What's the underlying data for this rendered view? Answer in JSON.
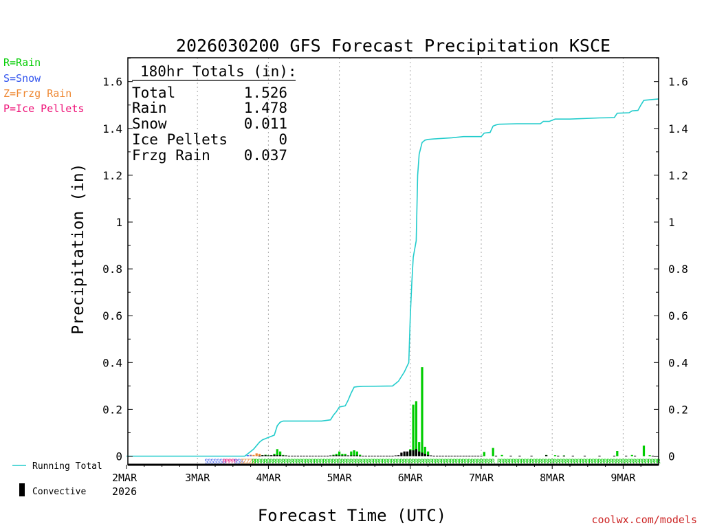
{
  "colors": {
    "rain": "#00cc00",
    "snow": "#3355ee",
    "frzg": "#ee8833",
    "ice": "#ee1177",
    "total_line": "#22cccc",
    "convective": "#000000",
    "grid": "#aaaaaa",
    "credit": "#cc2222"
  },
  "legend": {
    "rain": "R=Rain",
    "snow": "S=Snow",
    "frzg": "Z=Frzg Rain",
    "ice": "P=Ice Pellets",
    "running_total": "Running Total",
    "convective": "Convective"
  },
  "totals_box": {
    "header": "180hr Totals (in):",
    "rows": [
      {
        "label": "Total",
        "value": "1.526"
      },
      {
        "label": "Rain",
        "value": "1.478"
      },
      {
        "label": "Snow",
        "value": "0.011"
      },
      {
        "label": "Ice Pellets",
        "value": "0"
      },
      {
        "label": "Frzg Rain",
        "value": "0.037"
      }
    ]
  },
  "credit": "coolwx.com/models",
  "chart_data": {
    "type": "bar",
    "title": "2026030200 GFS Forecast Precipitation KSCE",
    "xlabel": "Forecast Time (UTC)",
    "ylabel": "Precipitation (in)",
    "ylim": [
      0,
      1.68
    ],
    "xlim_hours": [
      0,
      180
    ],
    "yticks": [
      0,
      0.2,
      0.4,
      0.6,
      0.8,
      1,
      1.2,
      1.4,
      1.6
    ],
    "ytick_labels": [
      "0",
      "0.2",
      "0.4",
      "0.6",
      "0.8",
      "1",
      "1.2",
      "1.4",
      "1.6"
    ],
    "xticks": [
      {
        "hour": 0,
        "label": "2MAR"
      },
      {
        "hour": 24,
        "label": "3MAR"
      },
      {
        "hour": 48,
        "label": "4MAR"
      },
      {
        "hour": 72,
        "label": "5MAR"
      },
      {
        "hour": 96,
        "label": "6MAR"
      },
      {
        "hour": 120,
        "label": "7MAR"
      },
      {
        "hour": 144,
        "label": "8MAR"
      },
      {
        "hour": 168,
        "label": "9MAR"
      }
    ],
    "year_label": "2026",
    "running_total": [
      [
        0,
        0
      ],
      [
        24,
        0
      ],
      [
        40,
        0
      ],
      [
        41,
        0.01
      ],
      [
        42,
        0.02
      ],
      [
        43,
        0.03
      ],
      [
        44,
        0.045
      ],
      [
        45,
        0.06
      ],
      [
        46,
        0.07
      ],
      [
        47,
        0.075
      ],
      [
        48,
        0.08
      ],
      [
        49,
        0.085
      ],
      [
        50,
        0.09
      ],
      [
        51,
        0.13
      ],
      [
        52,
        0.145
      ],
      [
        53,
        0.15
      ],
      [
        66,
        0.15
      ],
      [
        69,
        0.155
      ],
      [
        70,
        0.175
      ],
      [
        71,
        0.19
      ],
      [
        72,
        0.21
      ],
      [
        74,
        0.215
      ],
      [
        75,
        0.24
      ],
      [
        76,
        0.27
      ],
      [
        77,
        0.295
      ],
      [
        78,
        0.297
      ],
      [
        80,
        0.298
      ],
      [
        90,
        0.3
      ],
      [
        92,
        0.32
      ],
      [
        94,
        0.36
      ],
      [
        95.5,
        0.4
      ],
      [
        96,
        0.6
      ],
      [
        96.5,
        0.74
      ],
      [
        97,
        0.85
      ],
      [
        98,
        0.92
      ],
      [
        98.5,
        1.2
      ],
      [
        99,
        1.29
      ],
      [
        100,
        1.34
      ],
      [
        101,
        1.35
      ],
      [
        102,
        1.353
      ],
      [
        104,
        1.355
      ],
      [
        110,
        1.36
      ],
      [
        114,
        1.365
      ],
      [
        120,
        1.365
      ],
      [
        121,
        1.38
      ],
      [
        123,
        1.383
      ],
      [
        124,
        1.41
      ],
      [
        125,
        1.415
      ],
      [
        126,
        1.418
      ],
      [
        132,
        1.42
      ],
      [
        140,
        1.42
      ],
      [
        141,
        1.43
      ],
      [
        143,
        1.43
      ],
      [
        144,
        1.435
      ],
      [
        145,
        1.44
      ],
      [
        150,
        1.44
      ],
      [
        160,
        1.445
      ],
      [
        165,
        1.446
      ],
      [
        166,
        1.465
      ],
      [
        170,
        1.467
      ],
      [
        171,
        1.475
      ],
      [
        173,
        1.477
      ],
      [
        174,
        1.5
      ],
      [
        175,
        1.52
      ],
      [
        180,
        1.526
      ]
    ],
    "rain_bars": [
      [
        46,
        0.004
      ],
      [
        47,
        0.006
      ],
      [
        48,
        0.004
      ],
      [
        49,
        0.003
      ],
      [
        50,
        0.01
      ],
      [
        51,
        0.03
      ],
      [
        52,
        0.02
      ],
      [
        53,
        0.005
      ],
      [
        54,
        0.003
      ],
      [
        70,
        0.006
      ],
      [
        71,
        0.01
      ],
      [
        72,
        0.02
      ],
      [
        73,
        0.01
      ],
      [
        74,
        0.01
      ],
      [
        76,
        0.02
      ],
      [
        77,
        0.025
      ],
      [
        78,
        0.02
      ],
      [
        79,
        0.006
      ],
      [
        94,
        0.005
      ],
      [
        95,
        0.008
      ],
      [
        96,
        0.03
      ],
      [
        97,
        0.22
      ],
      [
        98,
        0.235
      ],
      [
        99,
        0.06
      ],
      [
        100,
        0.38
      ],
      [
        101,
        0.04
      ],
      [
        102,
        0.02
      ],
      [
        121,
        0.018
      ],
      [
        124,
        0.035
      ],
      [
        127,
        0.005
      ],
      [
        142,
        0.005
      ],
      [
        145,
        0.004
      ],
      [
        148,
        0.003
      ],
      [
        166,
        0.022
      ],
      [
        171,
        0.005
      ],
      [
        175,
        0.045
      ],
      [
        177,
        0.004
      ]
    ],
    "frzg_bars": [
      [
        42,
        0.006
      ],
      [
        43,
        0.005
      ],
      [
        44,
        0.012
      ],
      [
        45,
        0.01
      ]
    ],
    "snow_bars": [
      [
        41,
        0.004
      ],
      [
        42,
        0.003
      ]
    ],
    "convective_bars": [
      [
        45,
        0.002
      ],
      [
        46,
        0.004
      ],
      [
        47,
        0.004
      ],
      [
        48,
        0.003
      ],
      [
        49,
        0.004
      ],
      [
        50,
        0.005
      ],
      [
        51,
        0.004
      ],
      [
        52,
        0.004
      ],
      [
        53,
        0.003
      ],
      [
        54,
        0.003
      ],
      [
        55,
        0.002
      ],
      [
        56,
        0.002
      ],
      [
        57,
        0.002
      ],
      [
        58,
        0.002
      ],
      [
        59,
        0.002
      ],
      [
        60,
        0.002
      ],
      [
        61,
        0.002
      ],
      [
        62,
        0.002
      ],
      [
        63,
        0.002
      ],
      [
        64,
        0.002
      ],
      [
        65,
        0.002
      ],
      [
        66,
        0.002
      ],
      [
        67,
        0.002
      ],
      [
        68,
        0.002
      ],
      [
        69,
        0.003
      ],
      [
        70,
        0.003
      ],
      [
        71,
        0.004
      ],
      [
        72,
        0.003
      ],
      [
        73,
        0.003
      ],
      [
        74,
        0.003
      ],
      [
        75,
        0.003
      ],
      [
        76,
        0.003
      ],
      [
        77,
        0.003
      ],
      [
        78,
        0.003
      ],
      [
        79,
        0.002
      ],
      [
        80,
        0.002
      ],
      [
        81,
        0.002
      ],
      [
        82,
        0.002
      ],
      [
        83,
        0.002
      ],
      [
        84,
        0.002
      ],
      [
        85,
        0.002
      ],
      [
        86,
        0.002
      ],
      [
        87,
        0.002
      ],
      [
        88,
        0.002
      ],
      [
        89,
        0.002
      ],
      [
        90,
        0.002
      ],
      [
        91,
        0.003
      ],
      [
        92,
        0.004
      ],
      [
        93,
        0.015
      ],
      [
        94,
        0.02
      ],
      [
        95,
        0.02
      ],
      [
        96,
        0.025
      ],
      [
        97,
        0.025
      ],
      [
        98,
        0.03
      ],
      [
        99,
        0.02
      ],
      [
        100,
        0.015
      ],
      [
        101,
        0.01
      ],
      [
        102,
        0.005
      ],
      [
        103,
        0.003
      ],
      [
        104,
        0.002
      ],
      [
        105,
        0.002
      ],
      [
        106,
        0.002
      ],
      [
        107,
        0.002
      ],
      [
        108,
        0.002
      ],
      [
        109,
        0.002
      ],
      [
        110,
        0.002
      ],
      [
        111,
        0.002
      ],
      [
        112,
        0.002
      ],
      [
        113,
        0.002
      ],
      [
        114,
        0.002
      ],
      [
        115,
        0.002
      ],
      [
        116,
        0.002
      ],
      [
        117,
        0.002
      ],
      [
        118,
        0.002
      ],
      [
        119,
        0.002
      ],
      [
        120,
        0.002
      ],
      [
        125,
        0.002
      ],
      [
        130,
        0.002
      ],
      [
        133,
        0.002
      ],
      [
        137,
        0.002
      ],
      [
        142,
        0.004
      ],
      [
        146,
        0.002
      ],
      [
        148,
        0.002
      ],
      [
        151,
        0.002
      ],
      [
        155,
        0.002
      ],
      [
        160,
        0.002
      ],
      [
        165,
        0.002
      ],
      [
        169,
        0.002
      ],
      [
        172,
        0.002
      ],
      [
        178,
        0.002
      ]
    ],
    "type_strip": [
      {
        "from": 27,
        "to": 33,
        "code": "S"
      },
      {
        "from": 33,
        "to": 37,
        "code": "P"
      },
      {
        "from": 37,
        "to": 39,
        "code": "S"
      },
      {
        "from": 39,
        "to": 43,
        "code": "Z"
      },
      {
        "from": 43,
        "to": 62,
        "code": "R"
      },
      {
        "from": 63,
        "to": 124,
        "code": "R"
      },
      {
        "from": 126,
        "to": 180,
        "code": "R"
      }
    ]
  }
}
